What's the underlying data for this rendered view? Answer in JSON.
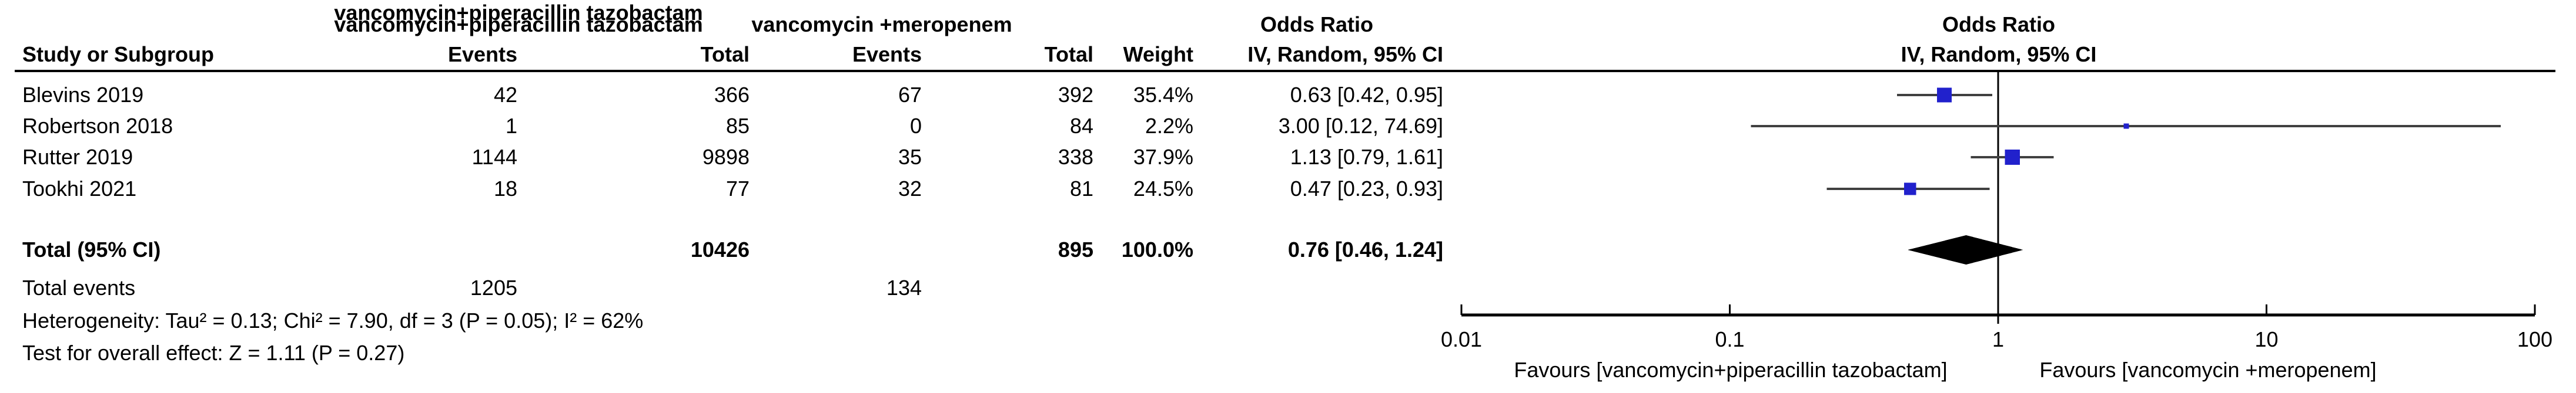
{
  "table": {
    "group1_header": "vancomycin+piperacillin tazobactam",
    "group2_header": "vancomycin +meropenem",
    "or_header_left": "Odds Ratio",
    "or_header_right": "Odds Ratio",
    "columns": {
      "study": "Study or Subgroup",
      "events1": "Events",
      "total1": "Total",
      "events2": "Events",
      "total2": "Total",
      "weight": "Weight",
      "ci_left": "IV, Random, 95% CI",
      "ci_right": "IV, Random, 95% CI"
    },
    "studies": [
      {
        "name": "Blevins 2019",
        "e1": "42",
        "t1": "366",
        "e2": "67",
        "t2": "392",
        "weight": "35.4%",
        "ci_text": "0.63 [0.42, 0.95]"
      },
      {
        "name": "Robertson 2018",
        "e1": "1",
        "t1": "85",
        "e2": "0",
        "t2": "84",
        "weight": "2.2%",
        "ci_text": "3.00 [0.12, 74.69]"
      },
      {
        "name": "Rutter 2019",
        "e1": "1144",
        "t1": "9898",
        "e2": "35",
        "t2": "338",
        "weight": "37.9%",
        "ci_text": "1.13 [0.79, 1.61]"
      },
      {
        "name": "Tookhi 2021",
        "e1": "18",
        "t1": "77",
        "e2": "32",
        "t2": "81",
        "weight": "24.5%",
        "ci_text": "0.47 [0.23, 0.93]"
      }
    ],
    "total_row": {
      "label": "Total (95% CI)",
      "t1": "10426",
      "t2": "895",
      "weight": "100.0%",
      "ci_text": "0.76 [0.46, 1.24]"
    },
    "total_events": {
      "label": "Total events",
      "e1": "1205",
      "e2": "134"
    },
    "heterogeneity": "Heterogeneity: Tau² = 0.13; Chi² = 7.90, df = 3 (P = 0.05); I² = 62%",
    "overall_effect": "Test for overall effect: Z = 1.11 (P = 0.27)"
  },
  "chart_data": {
    "type": "scatter",
    "subtype": "forest-plot-meta-analysis",
    "effect_measure": "Odds Ratio",
    "model": "IV, Random, 95% CI",
    "x_scale": "log",
    "x_range": [
      0.01,
      100
    ],
    "null_line_value": 1,
    "axis_ticks": [
      {
        "value": 0.01,
        "label": "0.01"
      },
      {
        "value": 0.1,
        "label": "0.1"
      },
      {
        "value": 1,
        "label": "1"
      },
      {
        "value": 10,
        "label": "10"
      },
      {
        "value": 100,
        "label": "100"
      }
    ],
    "studies": [
      {
        "name": "Blevins 2019",
        "or": 0.63,
        "ci_low": 0.42,
        "ci_high": 0.95,
        "weight_pct": 35.4
      },
      {
        "name": "Robertson 2018",
        "or": 3.0,
        "ci_low": 0.12,
        "ci_high": 74.69,
        "weight_pct": 2.2
      },
      {
        "name": "Rutter 2019",
        "or": 1.13,
        "ci_low": 0.79,
        "ci_high": 1.61,
        "weight_pct": 37.9
      },
      {
        "name": "Tookhi 2021",
        "or": 0.47,
        "ci_low": 0.23,
        "ci_high": 0.93,
        "weight_pct": 24.5
      }
    ],
    "total": {
      "or": 0.76,
      "ci_low": 0.46,
      "ci_high": 1.24,
      "weight_pct": 100.0
    },
    "favours_left": "Favours [vancomycin+piperacillin tazobactam]",
    "favours_right": "Favours [vancomycin +meropenem]",
    "marker_color": "#2121CC",
    "ci_line_color": "#404040",
    "diamond_color": "#000000",
    "axis_color": "#000000"
  }
}
